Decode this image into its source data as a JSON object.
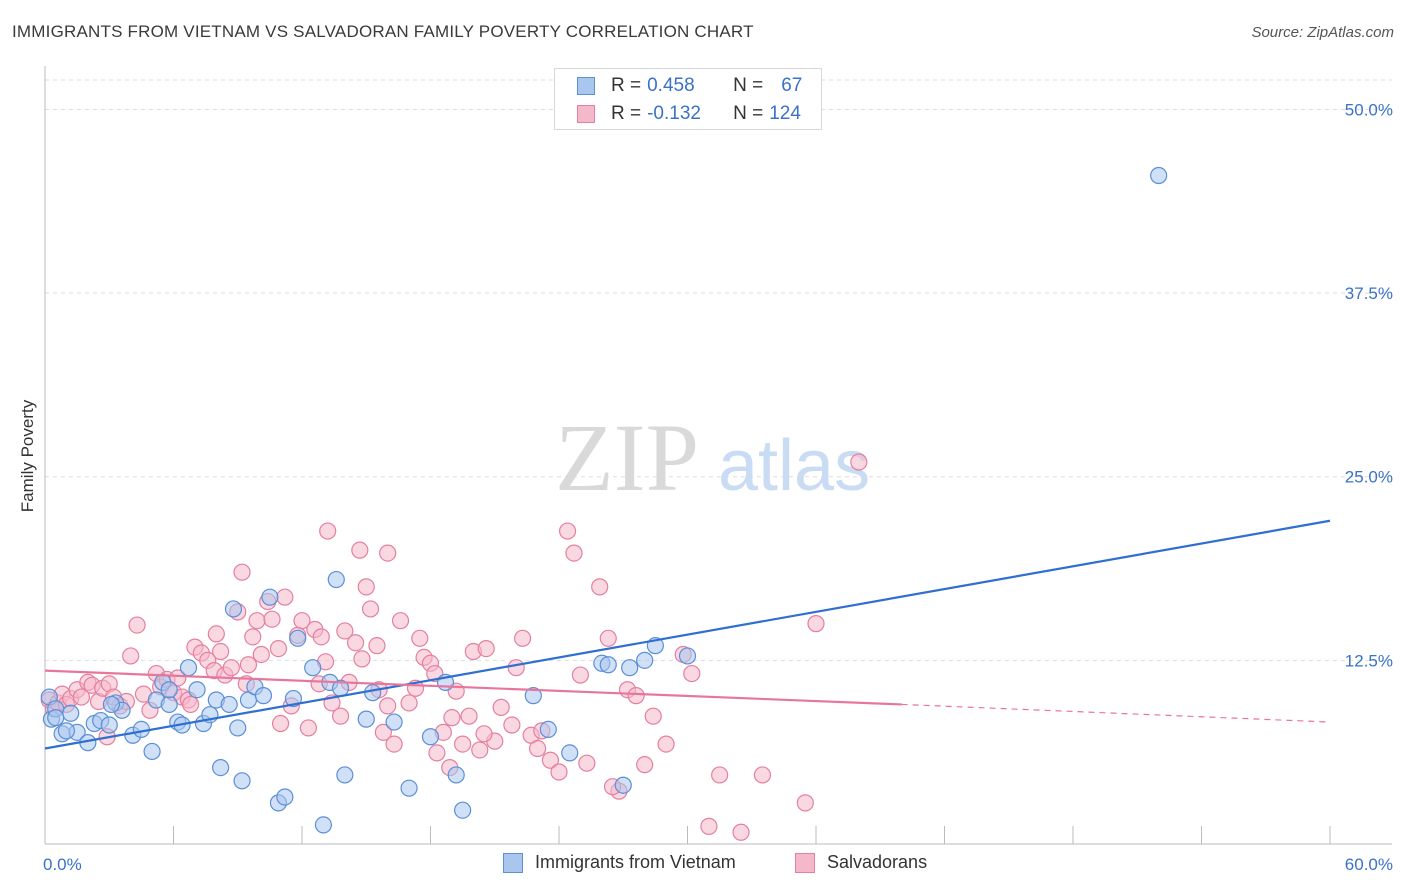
{
  "title": "IMMIGRANTS FROM VIETNAM VS SALVADORAN FAMILY POVERTY CORRELATION CHART",
  "source": "Source: ZipAtlas.com",
  "watermark": {
    "zip": "ZIP",
    "atlas": "atlas"
  },
  "legend": {
    "rows": [
      {
        "r_label": "R =",
        "r_value": "0.458",
        "n_label": "N =",
        "n_value": "67"
      },
      {
        "r_label": "R =",
        "r_value": "-0.132",
        "n_label": "N =",
        "n_value": "124"
      }
    ]
  },
  "colors": {
    "blue_fill": "#a9c6ee",
    "blue_stroke": "#5b8fd6",
    "blue_line": "#2f6fd1",
    "pink_fill": "#f5b8cb",
    "pink_stroke": "#e57fa0",
    "pink_line": "#e8769c",
    "tick_color": "#3a72c8",
    "grid": "#dddddd"
  },
  "chart_data": {
    "type": "scatter",
    "title": "IMMIGRANTS FROM VIETNAM VS SALVADORAN FAMILY POVERTY CORRELATION CHART",
    "xlabel": "",
    "ylabel": "Family Poverty",
    "xlim": [
      0,
      60
    ],
    "ylim": [
      0,
      52
    ],
    "x_tick_labels": [
      "0.0%",
      "60.0%"
    ],
    "y_tick_labels": [
      "12.5%",
      "25.0%",
      "37.5%",
      "50.0%"
    ],
    "y_ticks": [
      12.5,
      25.0,
      37.5,
      50.0
    ],
    "grid": true,
    "series": [
      {
        "name": "Immigrants from Vietnam",
        "r": 0.458,
        "n": 67,
        "trend": {
          "x": [
            0,
            60
          ],
          "y": [
            6.5,
            22.0
          ]
        },
        "points": [
          [
            0.2,
            10.0
          ],
          [
            0.3,
            8.5
          ],
          [
            0.5,
            9.2
          ],
          [
            0.8,
            7.5
          ],
          [
            1.2,
            8.9
          ],
          [
            1.5,
            7.6
          ],
          [
            2.0,
            6.9
          ],
          [
            2.3,
            8.2
          ],
          [
            2.6,
            8.4
          ],
          [
            3.0,
            8.1
          ],
          [
            3.3,
            9.6
          ],
          [
            3.6,
            9.1
          ],
          [
            4.1,
            7.4
          ],
          [
            4.5,
            7.8
          ],
          [
            5.0,
            6.3
          ],
          [
            5.2,
            9.8
          ],
          [
            5.5,
            11.0
          ],
          [
            5.8,
            9.5
          ],
          [
            6.2,
            8.3
          ],
          [
            6.4,
            8.1
          ],
          [
            6.7,
            12.0
          ],
          [
            7.1,
            10.5
          ],
          [
            7.4,
            8.2
          ],
          [
            7.7,
            8.8
          ],
          [
            8.0,
            9.8
          ],
          [
            8.2,
            5.2
          ],
          [
            8.6,
            9.5
          ],
          [
            8.8,
            16.0
          ],
          [
            9.0,
            7.9
          ],
          [
            9.2,
            4.3
          ],
          [
            9.5,
            9.8
          ],
          [
            9.8,
            10.7
          ],
          [
            10.2,
            10.1
          ],
          [
            10.5,
            16.8
          ],
          [
            10.9,
            2.8
          ],
          [
            11.2,
            3.2
          ],
          [
            11.6,
            9.9
          ],
          [
            11.8,
            14.0
          ],
          [
            12.5,
            12.0
          ],
          [
            13.0,
            1.3
          ],
          [
            13.3,
            11.0
          ],
          [
            13.6,
            18.0
          ],
          [
            13.8,
            10.6
          ],
          [
            14.0,
            4.7
          ],
          [
            15.0,
            8.5
          ],
          [
            15.3,
            10.3
          ],
          [
            16.3,
            8.3
          ],
          [
            17.0,
            3.8
          ],
          [
            18.0,
            7.3
          ],
          [
            18.7,
            11.0
          ],
          [
            19.2,
            4.7
          ],
          [
            19.5,
            2.3
          ],
          [
            22.8,
            10.1
          ],
          [
            23.5,
            7.8
          ],
          [
            24.5,
            6.2
          ],
          [
            26.0,
            12.3
          ],
          [
            26.3,
            12.2
          ],
          [
            27.0,
            4.0
          ],
          [
            27.3,
            12.0
          ],
          [
            28.0,
            12.5
          ],
          [
            28.5,
            13.5
          ],
          [
            30.0,
            12.8
          ],
          [
            52.0,
            45.5
          ],
          [
            0.5,
            8.6
          ],
          [
            1.0,
            7.7
          ],
          [
            3.1,
            9.5
          ],
          [
            5.8,
            10.5
          ]
        ]
      },
      {
        "name": "Salvadorans",
        "r": -0.132,
        "n": 124,
        "trend": {
          "x": [
            0,
            40
          ],
          "y": [
            11.8,
            9.5
          ]
        },
        "trend_dashed": {
          "x": [
            40,
            60
          ],
          "y": [
            9.5,
            8.3
          ]
        },
        "points": [
          [
            0.2,
            9.8
          ],
          [
            0.4,
            9.2
          ],
          [
            0.6,
            9.6
          ],
          [
            0.8,
            10.2
          ],
          [
            1.0,
            9.5
          ],
          [
            1.2,
            9.9
          ],
          [
            1.5,
            10.5
          ],
          [
            1.7,
            10.0
          ],
          [
            2.0,
            11.0
          ],
          [
            2.2,
            10.8
          ],
          [
            2.5,
            9.7
          ],
          [
            2.7,
            10.6
          ],
          [
            3.0,
            10.9
          ],
          [
            3.2,
            10.0
          ],
          [
            3.5,
            9.4
          ],
          [
            3.8,
            9.7
          ],
          [
            4.0,
            12.8
          ],
          [
            4.3,
            14.9
          ],
          [
            4.6,
            10.2
          ],
          [
            4.9,
            9.1
          ],
          [
            5.2,
            11.6
          ],
          [
            5.4,
            10.7
          ],
          [
            5.7,
            11.2
          ],
          [
            6.0,
            10.3
          ],
          [
            6.2,
            11.3
          ],
          [
            6.4,
            10.0
          ],
          [
            6.7,
            9.8
          ],
          [
            7.0,
            13.4
          ],
          [
            7.3,
            13.0
          ],
          [
            7.6,
            12.5
          ],
          [
            7.9,
            11.8
          ],
          [
            8.2,
            13.1
          ],
          [
            8.4,
            11.5
          ],
          [
            8.7,
            12.0
          ],
          [
            9.0,
            15.8
          ],
          [
            9.2,
            18.5
          ],
          [
            9.5,
            12.2
          ],
          [
            9.7,
            14.1
          ],
          [
            9.9,
            15.2
          ],
          [
            10.1,
            12.9
          ],
          [
            10.4,
            16.5
          ],
          [
            10.6,
            15.3
          ],
          [
            10.9,
            13.3
          ],
          [
            11.2,
            16.8
          ],
          [
            11.5,
            9.4
          ],
          [
            11.8,
            14.2
          ],
          [
            12.0,
            15.2
          ],
          [
            12.3,
            7.9
          ],
          [
            12.6,
            14.6
          ],
          [
            12.9,
            14.1
          ],
          [
            13.1,
            12.4
          ],
          [
            13.4,
            9.6
          ],
          [
            13.8,
            8.7
          ],
          [
            14.0,
            14.5
          ],
          [
            14.2,
            11.0
          ],
          [
            14.5,
            13.7
          ],
          [
            14.8,
            12.6
          ],
          [
            15.2,
            16.0
          ],
          [
            15.5,
            13.5
          ],
          [
            15.8,
            7.6
          ],
          [
            16.0,
            9.4
          ],
          [
            16.3,
            6.8
          ],
          [
            16.6,
            15.2
          ],
          [
            17.0,
            9.6
          ],
          [
            17.3,
            10.6
          ],
          [
            17.7,
            12.7
          ],
          [
            18.0,
            12.3
          ],
          [
            18.3,
            6.2
          ],
          [
            18.6,
            7.6
          ],
          [
            18.9,
            5.2
          ],
          [
            19.2,
            10.4
          ],
          [
            19.5,
            6.8
          ],
          [
            19.8,
            8.7
          ],
          [
            20.0,
            13.1
          ],
          [
            20.3,
            6.4
          ],
          [
            20.6,
            13.3
          ],
          [
            21.0,
            7.0
          ],
          [
            21.3,
            9.3
          ],
          [
            21.8,
            8.1
          ],
          [
            22.3,
            14.0
          ],
          [
            22.7,
            7.4
          ],
          [
            23.2,
            7.7
          ],
          [
            23.6,
            5.7
          ],
          [
            24.0,
            4.9
          ],
          [
            24.4,
            21.3
          ],
          [
            24.7,
            19.8
          ],
          [
            25.0,
            11.5
          ],
          [
            25.3,
            5.5
          ],
          [
            25.9,
            17.5
          ],
          [
            26.3,
            14.0
          ],
          [
            26.8,
            3.6
          ],
          [
            27.2,
            10.5
          ],
          [
            27.6,
            10.1
          ],
          [
            28.0,
            5.4
          ],
          [
            28.4,
            8.7
          ],
          [
            29.8,
            12.9
          ],
          [
            30.2,
            11.6
          ],
          [
            31.0,
            1.2
          ],
          [
            32.5,
            0.8
          ],
          [
            33.5,
            4.7
          ],
          [
            35.5,
            2.8
          ],
          [
            36.0,
            15.0
          ],
          [
            38.0,
            26.0
          ],
          [
            13.2,
            21.3
          ],
          [
            14.7,
            20.0
          ],
          [
            16.0,
            19.8
          ],
          [
            15.0,
            17.5
          ],
          [
            17.5,
            14.0
          ],
          [
            19.0,
            8.6
          ],
          [
            20.5,
            7.5
          ],
          [
            22.0,
            12.0
          ],
          [
            23.0,
            6.5
          ],
          [
            29.0,
            6.8
          ],
          [
            26.5,
            3.9
          ],
          [
            11.0,
            8.2
          ],
          [
            12.8,
            10.9
          ],
          [
            6.8,
            9.5
          ],
          [
            2.9,
            7.3
          ],
          [
            8.0,
            14.3
          ],
          [
            15.6,
            10.5
          ],
          [
            18.2,
            11.6
          ],
          [
            9.4,
            10.9
          ],
          [
            31.5,
            4.7
          ]
        ]
      }
    ]
  }
}
